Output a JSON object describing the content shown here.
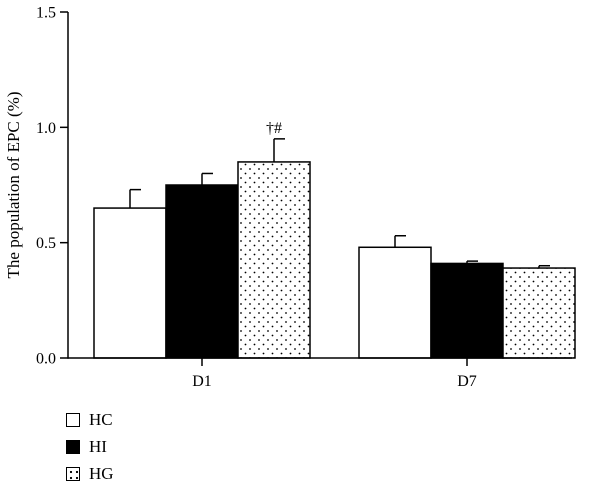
{
  "chart_data": {
    "type": "bar",
    "title": "",
    "xlabel": "",
    "ylabel": "The population of EPC (%)",
    "ylim": [
      0,
      1.5
    ],
    "yticks": [
      "0.0",
      "0.5",
      "1.0",
      "1.5"
    ],
    "categories": [
      "D1",
      "D7"
    ],
    "series": [
      {
        "name": "HC",
        "values": [
          0.65,
          0.48
        ],
        "errors": [
          0.08,
          0.05
        ],
        "fill": "white"
      },
      {
        "name": "HI",
        "values": [
          0.75,
          0.41
        ],
        "errors": [
          0.05,
          0.01
        ],
        "fill": "black"
      },
      {
        "name": "HG",
        "values": [
          0.85,
          0.39
        ],
        "errors": [
          0.1,
          0.01
        ],
        "fill": "dotted"
      }
    ],
    "annotations": [
      {
        "category": "D1",
        "series": "HG",
        "text": "†#"
      }
    ],
    "legend_position": "bottom-left",
    "grid": false
  },
  "colors": {
    "axis": "#000000",
    "bar_edge": "#000000",
    "white_fill": "#ffffff",
    "black_fill": "#000000"
  }
}
